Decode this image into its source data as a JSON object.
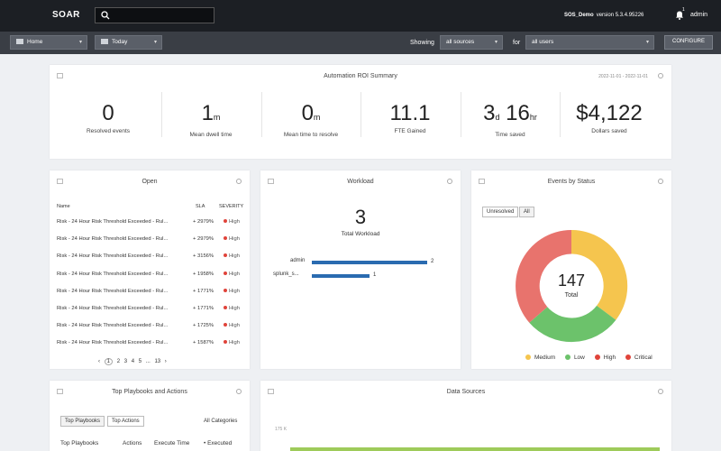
{
  "topbar": {
    "logo": "SOAR",
    "app_name": "SOS_Demo",
    "version": "version 5.3.4.95226",
    "notification_count": "1",
    "user": "admin"
  },
  "subbar": {
    "home": "Home",
    "period": "Today",
    "showing_label": "Showing",
    "showing_value": "all sources",
    "for_label": "for",
    "for_value": "all users",
    "configure": "CONFIGURE"
  },
  "roi": {
    "title": "Automation ROI Summary",
    "date_range": "2022-11-01 - 2022-11-01",
    "kpis": [
      {
        "value": "0",
        "unit": "",
        "label": "Resolved events"
      },
      {
        "value": "1",
        "unit": "m",
        "label": "Mean dwell time"
      },
      {
        "value": "0",
        "unit": "m",
        "label": "Mean time to resolve"
      },
      {
        "value": "11.1",
        "unit": "",
        "label": "FTE Gained"
      },
      {
        "value": "3",
        "unit": "d",
        "value2": "16",
        "unit2": "hr",
        "label": "Time saved"
      },
      {
        "value": "$4,122",
        "unit": "",
        "label": "Dollars saved"
      }
    ]
  },
  "open": {
    "title": "Open",
    "headers": {
      "name": "Name",
      "sla": "SLA",
      "severity": "SEVERITY"
    },
    "rows": [
      {
        "name": "Risk - 24 Hour Risk Threshold Exceeded - Rul...",
        "sla": "+ 2979%",
        "severity": "High"
      },
      {
        "name": "Risk - 24 Hour Risk Threshold Exceeded - Rul...",
        "sla": "+ 2979%",
        "severity": "High"
      },
      {
        "name": "Risk - 24 Hour Risk Threshold Exceeded - Rul...",
        "sla": "+ 3156%",
        "severity": "High"
      },
      {
        "name": "Risk - 24 Hour Risk Threshold Exceeded - Rul...",
        "sla": "+ 1958%",
        "severity": "High"
      },
      {
        "name": "Risk - 24 Hour Risk Threshold Exceeded - Rul...",
        "sla": "+ 1771%",
        "severity": "High"
      },
      {
        "name": "Risk - 24 Hour Risk Threshold Exceeded - Rul...",
        "sla": "+ 1771%",
        "severity": "High"
      },
      {
        "name": "Risk - 24 Hour Risk Threshold Exceeded - Rul...",
        "sla": "+ 1725%",
        "severity": "High"
      },
      {
        "name": "Risk - 24 Hour Risk Threshold Exceeded - Rul...",
        "sla": "+ 1587%",
        "severity": "High"
      }
    ],
    "pager": {
      "prev": "‹",
      "p1": "1",
      "p2": "2",
      "p3": "3",
      "p4": "4",
      "p5": "5",
      "ellipsis": "...",
      "last": "13",
      "next": "›"
    }
  },
  "workload": {
    "title": "Workload",
    "total": "3",
    "total_label": "Total Workload",
    "items": [
      {
        "name": "admin",
        "count": 2
      },
      {
        "name": "splunk_s...",
        "count": 1
      }
    ]
  },
  "events": {
    "title": "Events by Status",
    "seg_unresolved": "Unresolved",
    "seg_all": "All",
    "total": "147",
    "total_label": "Total",
    "legend": [
      {
        "label": "Medium",
        "color": "#f5c54e"
      },
      {
        "label": "Low",
        "color": "#6cc26b"
      },
      {
        "label": "High",
        "color": "#e0433a"
      },
      {
        "label": "Critical",
        "color": "#e8736d"
      }
    ]
  },
  "top_playbooks": {
    "title": "Top Playbooks and Actions",
    "tab_playbooks": "Top Playbooks",
    "tab_actions": "Top Actions",
    "filter": "All Categories",
    "col_playbooks": "Top Playbooks",
    "col_actions": "Actions",
    "col_time": "Execute Time",
    "col_executed": "Executed"
  },
  "data_sources": {
    "title": "Data Sources",
    "y_tick": "175 K"
  },
  "colors": {
    "topbar": "#1c1f24",
    "subbar": "#3a3e45",
    "bar": "#2a6bb0"
  }
}
